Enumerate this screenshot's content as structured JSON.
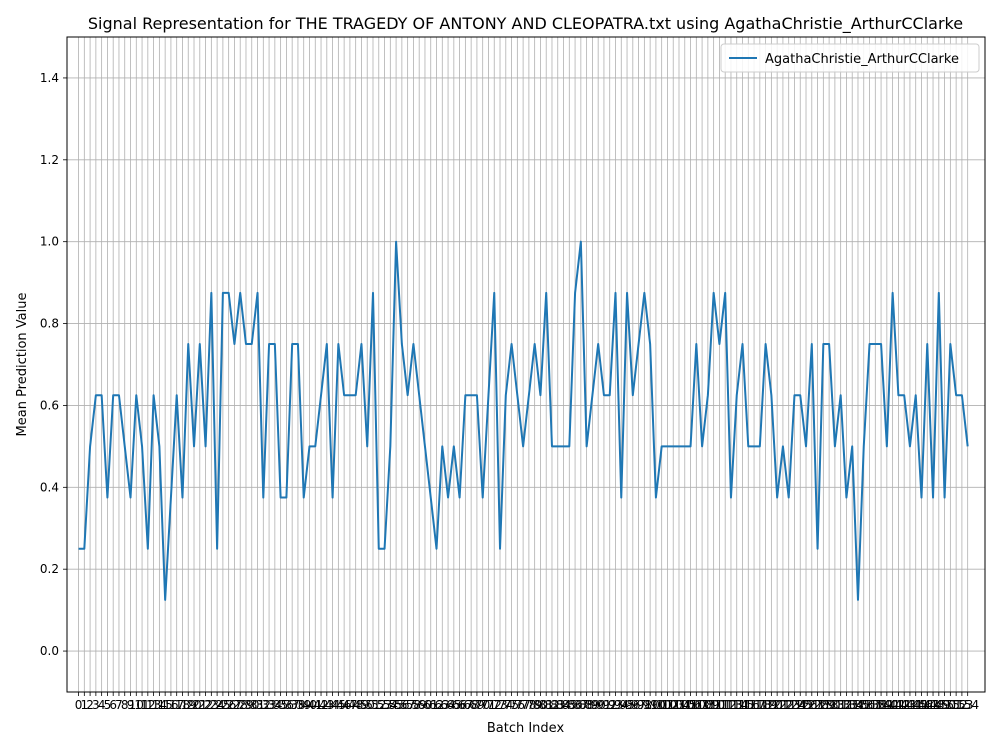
{
  "chart_data": {
    "type": "line",
    "title": "Signal Representation for THE TRAGEDY OF ANTONY AND CLEOPATRA.txt using AgathaChristie_ArthurCClarke",
    "xlabel": "Batch Index",
    "ylabel": "Mean Prediction Value",
    "xlim": [
      -2,
      157
    ],
    "ylim": [
      -0.1,
      1.5
    ],
    "yticks": [
      0.0,
      0.2,
      0.4,
      0.6,
      0.8,
      1.0,
      1.2,
      1.4
    ],
    "grid": true,
    "legend_position": "top-right",
    "colors": {
      "series": "#1f77b4",
      "grid": "#b0b0b0"
    },
    "series": [
      {
        "name": "AgathaChristie_ArthurCClarke",
        "x_start": 0,
        "values": [
          0.25,
          0.25,
          0.5,
          0.625,
          0.625,
          0.375,
          0.625,
          0.625,
          0.5,
          0.375,
          0.625,
          0.5,
          0.25,
          0.625,
          0.5,
          0.125,
          0.375,
          0.625,
          0.375,
          0.75,
          0.5,
          0.75,
          0.5,
          0.875,
          0.25,
          0.875,
          0.875,
          0.75,
          0.875,
          0.75,
          0.75,
          0.875,
          0.375,
          0.75,
          0.75,
          0.375,
          0.375,
          0.75,
          0.75,
          0.375,
          0.5,
          0.5,
          0.625,
          0.75,
          0.375,
          0.75,
          0.625,
          0.625,
          0.625,
          0.75,
          0.5,
          0.875,
          0.25,
          0.25,
          0.5,
          1.0,
          0.75,
          0.625,
          0.75,
          0.625,
          0.5,
          0.375,
          0.25,
          0.5,
          0.375,
          0.5,
          0.375,
          0.625,
          0.625,
          0.625,
          0.375,
          0.625,
          0.875,
          0.25,
          0.625,
          0.75,
          0.625,
          0.5,
          0.625,
          0.75,
          0.625,
          0.875,
          0.5,
          0.5,
          0.5,
          0.5,
          0.875,
          1.0,
          0.5,
          0.625,
          0.75,
          0.625,
          0.625,
          0.875,
          0.375,
          0.875,
          0.625,
          0.75,
          0.875,
          0.75,
          0.375,
          0.5,
          0.5,
          0.5,
          0.5,
          0.5,
          0.5,
          0.75,
          0.5,
          0.625,
          0.875,
          0.75,
          0.875,
          0.375,
          0.625,
          0.75,
          0.5,
          0.5,
          0.5,
          0.75,
          0.625,
          0.375,
          0.5,
          0.375,
          0.625,
          0.625,
          0.5,
          0.75,
          0.25,
          0.75,
          0.75,
          0.5,
          0.625,
          0.375,
          0.5,
          0.125,
          0.5,
          0.75,
          0.75,
          0.75,
          0.5,
          0.875,
          0.625,
          0.625,
          0.5,
          0.625,
          0.375,
          0.75,
          0.375,
          0.875,
          0.375,
          0.75,
          0.625,
          0.625,
          0.5
        ]
      }
    ]
  }
}
